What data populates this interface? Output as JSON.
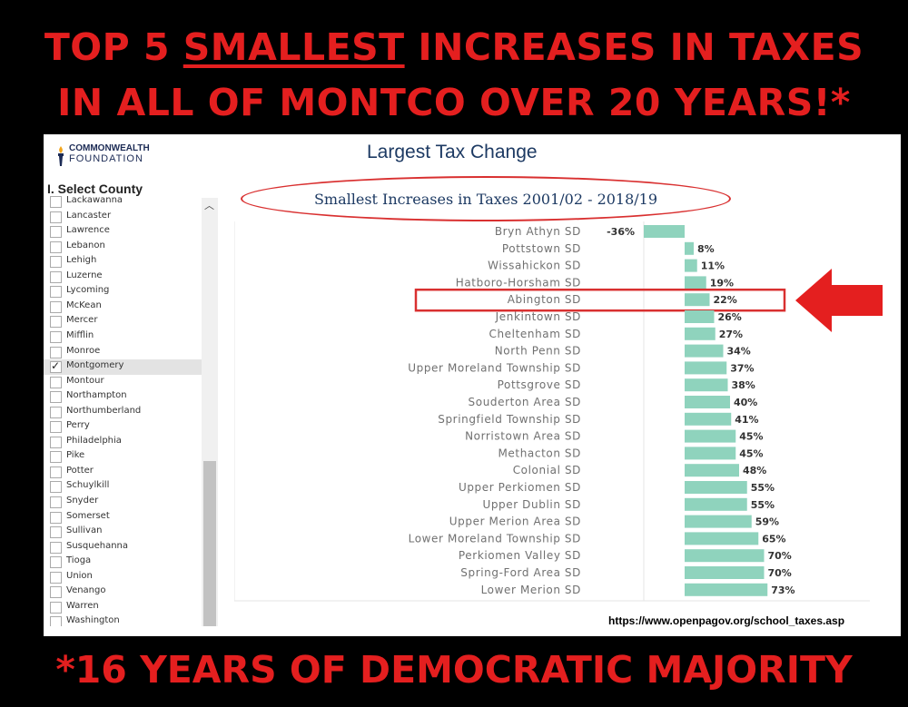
{
  "headline": {
    "line1_prefix": "TOP 5 ",
    "line1_emph": "SMALLEST",
    "line1_suffix": " INCREASES IN TAXES",
    "line2": "IN ALL OF MONTCO OVER 20 YEARS!*"
  },
  "footer": "*16 YEARS OF DEMOCRATIC MAJORITY",
  "logo": {
    "line1": "COMMONWEALTH",
    "line2": "FOUNDATION",
    "icon": "torch-icon"
  },
  "panel_title": "Largest Tax Change",
  "county_selector": {
    "label": "I. Select County",
    "counties": [
      "Lackawanna",
      "Lancaster",
      "Lawrence",
      "Lebanon",
      "Lehigh",
      "Luzerne",
      "Lycoming",
      "McKean",
      "Mercer",
      "Mifflin",
      "Monroe",
      "Montgomery",
      "Montour",
      "Northampton",
      "Northumberland",
      "Perry",
      "Philadelphia",
      "Pike",
      "Potter",
      "Schuylkill",
      "Snyder",
      "Somerset",
      "Sullivan",
      "Susquehanna",
      "Tioga",
      "Union",
      "Venango",
      "Warren",
      "Washington"
    ],
    "selected": "Montgomery"
  },
  "source_url": "https://www.openpagov.org/school_taxes.asp",
  "colors": {
    "bar": "#8fd3bd",
    "headline": "#e41f1f",
    "highlight": "#d93030",
    "title": "#1d3a63"
  },
  "highlighted_district": "Abington SD",
  "chart_data": {
    "type": "bar",
    "orientation": "horizontal",
    "title": "Smallest Increases in Taxes 2001/02 - 2018/19",
    "categories": [
      "Bryn Athyn SD",
      "Pottstown SD",
      "Wissahickon SD",
      "Hatboro-Horsham SD",
      "Abington SD",
      "Jenkintown SD",
      "Cheltenham SD",
      "North Penn SD",
      "Upper Moreland Township SD",
      "Pottsgrove SD",
      "Souderton Area SD",
      "Springfield Township SD",
      "Norristown Area SD",
      "Methacton SD",
      "Colonial SD",
      "Upper Perkiomen SD",
      "Upper Dublin SD",
      "Upper Merion Area SD",
      "Lower Moreland Township SD",
      "Perkiomen Valley SD",
      "Spring-Ford Area SD",
      "Lower Merion SD"
    ],
    "values": [
      -36,
      8,
      11,
      19,
      22,
      26,
      27,
      34,
      37,
      38,
      40,
      41,
      45,
      45,
      48,
      55,
      55,
      59,
      65,
      70,
      70,
      73
    ],
    "labels": [
      "-36%",
      "8%",
      "11%",
      "19%",
      "22%",
      "26%",
      "27%",
      "34%",
      "37%",
      "38%",
      "40%",
      "41%",
      "45%",
      "45%",
      "48%",
      "55%",
      "55%",
      "59%",
      "65%",
      "70%",
      "70%",
      "73%"
    ],
    "unit": "%",
    "grid": false,
    "legend": "none"
  }
}
